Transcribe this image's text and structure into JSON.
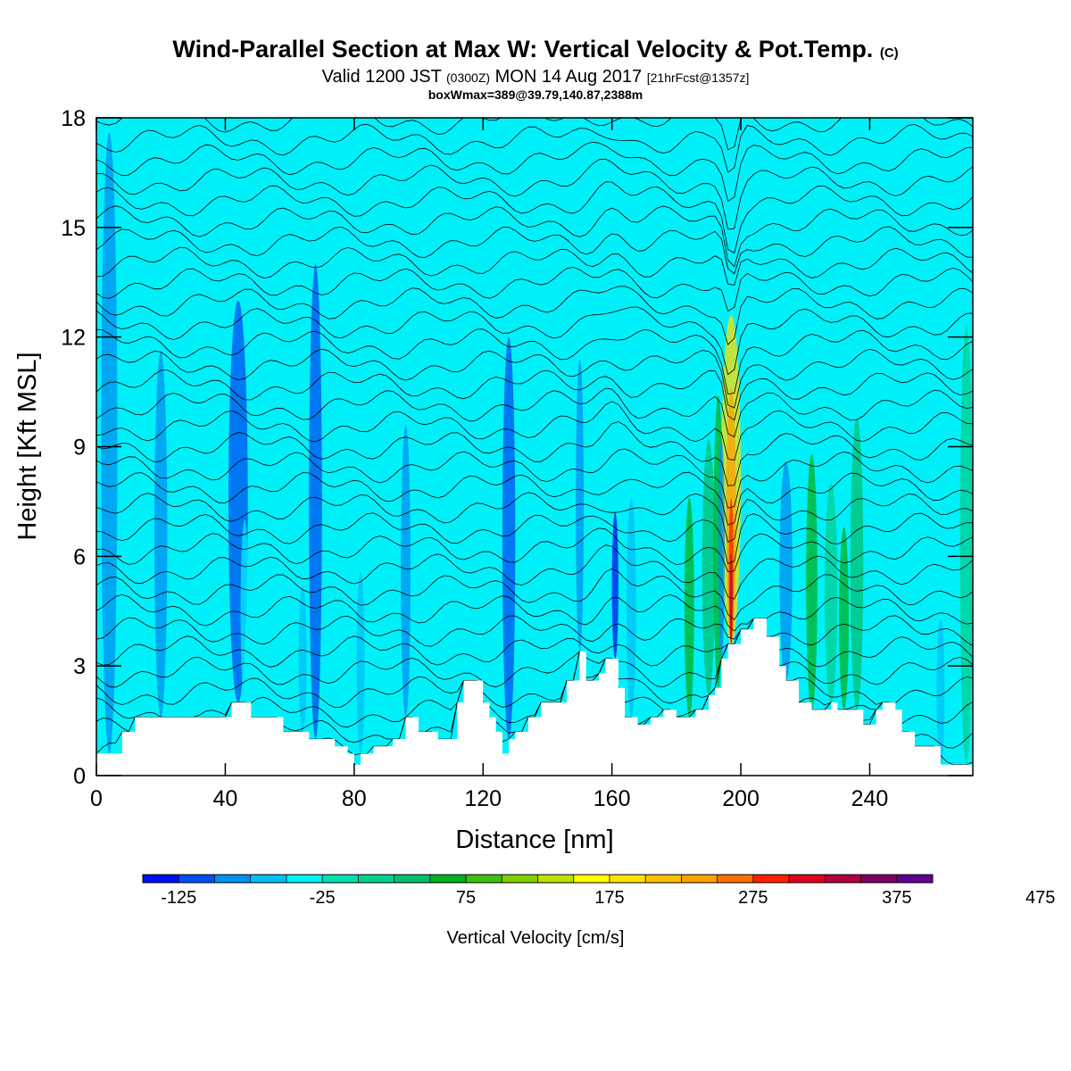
{
  "header": {
    "title": "Wind-Parallel Section at Max W: Vertical Velocity & Pot.Temp.",
    "title_mark": "(C)",
    "valid_prefix": "Valid 1200 JST",
    "valid_utc": "(0300Z)",
    "valid_date": "MON 14 Aug 2017",
    "forecast_note": "[21hrFcst@1357z]",
    "box_info": "boxWmax=389@39.79,140.87,2388m"
  },
  "chart_data": {
    "type": "heatmap",
    "title": "Wind-Parallel Section at Max W: Vertical Velocity & Pot.Temp.",
    "xlabel": "Distance [nm]",
    "ylabel": "Height [Kft MSL]",
    "xlim": [
      0,
      272
    ],
    "ylim": [
      0,
      18
    ],
    "x_ticks": [
      0,
      40,
      80,
      120,
      160,
      200,
      240
    ],
    "y_ticks": [
      0,
      3,
      6,
      9,
      12,
      15,
      18
    ],
    "colorbar": {
      "title": "Vertical Velocity [cm/s]",
      "labels": [
        -125,
        -25,
        75,
        175,
        275,
        375,
        475
      ],
      "start": -150,
      "step": 25,
      "colors": [
        "#0010ee",
        "#0050f0",
        "#0090f0",
        "#00c0f5",
        "#00f0fa",
        "#00e0b0",
        "#00d090",
        "#00c070",
        "#00b020",
        "#40c010",
        "#80d000",
        "#c0e000",
        "#ffff00",
        "#ffe000",
        "#ffc000",
        "#ffa000",
        "#ff7000",
        "#ff2000",
        "#e00020",
        "#b00040",
        "#800060",
        "#600090"
      ]
    },
    "terrain": [
      [
        0,
        0.6
      ],
      [
        8,
        0.6
      ],
      [
        8,
        1.2
      ],
      [
        12,
        1.2
      ],
      [
        12,
        1.6
      ],
      [
        42,
        1.6
      ],
      [
        42,
        2
      ],
      [
        48,
        2
      ],
      [
        48,
        1.6
      ],
      [
        58,
        1.6
      ],
      [
        58,
        1.2
      ],
      [
        66,
        1.2
      ],
      [
        66,
        1
      ],
      [
        74,
        1
      ],
      [
        74,
        0.8
      ],
      [
        78,
        0.8
      ],
      [
        78,
        0.6
      ],
      [
        80,
        0.6
      ],
      [
        80,
        0.3
      ],
      [
        82,
        0.3
      ],
      [
        82,
        0.6
      ],
      [
        86,
        0.6
      ],
      [
        86,
        0.8
      ],
      [
        92,
        0.8
      ],
      [
        92,
        1
      ],
      [
        96,
        1
      ],
      [
        96,
        1.6
      ],
      [
        100,
        1.6
      ],
      [
        100,
        1.2
      ],
      [
        106,
        1.2
      ],
      [
        106,
        1
      ],
      [
        112,
        1
      ],
      [
        112,
        2
      ],
      [
        114,
        2
      ],
      [
        114,
        2.6
      ],
      [
        120,
        2.6
      ],
      [
        120,
        2
      ],
      [
        122,
        2
      ],
      [
        122,
        1.6
      ],
      [
        124,
        1.6
      ],
      [
        124,
        1.2
      ],
      [
        126,
        1.2
      ],
      [
        126,
        0.6
      ],
      [
        128,
        0.6
      ],
      [
        128,
        1
      ],
      [
        130,
        1
      ],
      [
        130,
        1.2
      ],
      [
        134,
        1.2
      ],
      [
        134,
        1.6
      ],
      [
        138,
        1.6
      ],
      [
        138,
        2
      ],
      [
        146,
        2
      ],
      [
        146,
        2.6
      ],
      [
        150,
        2.6
      ],
      [
        150,
        3.4
      ],
      [
        152,
        3.4
      ],
      [
        152,
        2.6
      ],
      [
        156,
        2.6
      ],
      [
        156,
        2.8
      ],
      [
        158,
        2.8
      ],
      [
        158,
        3.2
      ],
      [
        162,
        3.2
      ],
      [
        162,
        2.4
      ],
      [
        164,
        2.4
      ],
      [
        164,
        1.6
      ],
      [
        168,
        1.6
      ],
      [
        168,
        1.4
      ],
      [
        172,
        1.4
      ],
      [
        172,
        1.6
      ],
      [
        176,
        1.6
      ],
      [
        176,
        1.8
      ],
      [
        180,
        1.8
      ],
      [
        180,
        1.6
      ],
      [
        186,
        1.6
      ],
      [
        186,
        1.8
      ],
      [
        190,
        1.8
      ],
      [
        190,
        2.2
      ],
      [
        192,
        2.2
      ],
      [
        192,
        2.4
      ],
      [
        194,
        2.4
      ],
      [
        194,
        3.2
      ],
      [
        196,
        3.2
      ],
      [
        196,
        3.6
      ],
      [
        200,
        3.6
      ],
      [
        200,
        4
      ],
      [
        204,
        4
      ],
      [
        204,
        4.3
      ],
      [
        208,
        4.3
      ],
      [
        208,
        3.8
      ],
      [
        212,
        3.8
      ],
      [
        212,
        3
      ],
      [
        214,
        3
      ],
      [
        214,
        2.6
      ],
      [
        218,
        2.6
      ],
      [
        218,
        2
      ],
      [
        222,
        2
      ],
      [
        222,
        1.8
      ],
      [
        228,
        1.8
      ],
      [
        228,
        2
      ],
      [
        230,
        2
      ],
      [
        230,
        1.8
      ],
      [
        238,
        1.8
      ],
      [
        238,
        1.4
      ],
      [
        242,
        1.4
      ],
      [
        242,
        1.8
      ],
      [
        244,
        1.8
      ],
      [
        244,
        2
      ],
      [
        248,
        2
      ],
      [
        248,
        1.8
      ],
      [
        250,
        1.8
      ],
      [
        250,
        1.2
      ],
      [
        254,
        1.2
      ],
      [
        254,
        0.8
      ],
      [
        262,
        0.8
      ],
      [
        262,
        0.3
      ],
      [
        272,
        0.3
      ]
    ]
  }
}
